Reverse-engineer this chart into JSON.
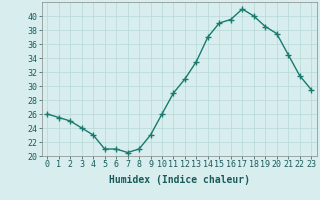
{
  "x": [
    0,
    1,
    2,
    3,
    4,
    5,
    6,
    7,
    8,
    9,
    10,
    11,
    12,
    13,
    14,
    15,
    16,
    17,
    18,
    19,
    20,
    21,
    22,
    23
  ],
  "y": [
    26,
    25.5,
    25,
    24,
    23,
    21,
    21,
    20.5,
    21,
    23,
    26,
    29,
    31,
    33.5,
    37,
    39,
    39.5,
    41,
    40,
    38.5,
    37.5,
    34.5,
    31.5,
    29.5
  ],
  "line_color": "#1a7a6e",
  "marker": "+",
  "marker_size": 4,
  "bg_color": "#d8eeee",
  "grid_color": "#b8d8d8",
  "xlabel": "Humidex (Indice chaleur)",
  "ylim": [
    20,
    42
  ],
  "xlim": [
    -0.5,
    23.5
  ],
  "yticks": [
    20,
    22,
    24,
    26,
    28,
    30,
    32,
    34,
    36,
    38,
    40
  ],
  "xticks": [
    0,
    1,
    2,
    3,
    4,
    5,
    6,
    7,
    8,
    9,
    10,
    11,
    12,
    13,
    14,
    15,
    16,
    17,
    18,
    19,
    20,
    21,
    22,
    23
  ],
  "xlabel_fontsize": 7,
  "tick_fontsize": 6,
  "line_width": 1.0,
  "marker_color": "#1a7a6e"
}
